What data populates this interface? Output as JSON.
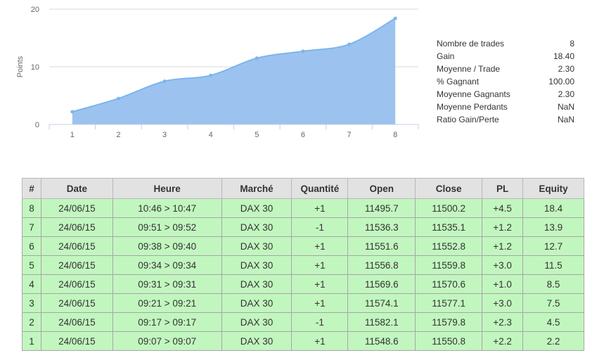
{
  "chart_data": {
    "type": "area",
    "x": [
      1,
      2,
      3,
      4,
      5,
      6,
      7,
      8
    ],
    "values": [
      2.2,
      4.5,
      7.5,
      8.5,
      11.5,
      12.7,
      13.9,
      18.4
    ],
    "xlabel": "",
    "ylabel": "Points",
    "ylim": [
      0,
      20
    ],
    "yticks": [
      0,
      10,
      20
    ],
    "grid": true,
    "fill_color": "#9cc3ef",
    "line_color": "#7cb5ec"
  },
  "stats": [
    {
      "label": "Nombre de trades",
      "value": "8"
    },
    {
      "label": "Gain",
      "value": "18.40"
    },
    {
      "label": "Moyenne / Trade",
      "value": "2.30"
    },
    {
      "label": "% Gagnant",
      "value": "100.00"
    },
    {
      "label": "Moyenne Gagnants",
      "value": "2.30"
    },
    {
      "label": "Moyenne Perdants",
      "value": "NaN"
    },
    {
      "label": "Ratio Gain/Perte",
      "value": "NaN"
    }
  ],
  "table": {
    "columns": [
      "#",
      "Date",
      "Heure",
      "Marché",
      "Quantité",
      "Open",
      "Close",
      "PL",
      "Equity"
    ],
    "rows": [
      [
        "8",
        "24/06/15",
        "10:46 > 10:47",
        "DAX 30",
        "+1",
        "11495.7",
        "11500.2",
        "+4.5",
        "18.4"
      ],
      [
        "7",
        "24/06/15",
        "09:51 > 09:52",
        "DAX 30",
        "-1",
        "11536.3",
        "11535.1",
        "+1.2",
        "13.9"
      ],
      [
        "6",
        "24/06/15",
        "09:38 > 09:40",
        "DAX 30",
        "+1",
        "11551.6",
        "11552.8",
        "+1.2",
        "12.7"
      ],
      [
        "5",
        "24/06/15",
        "09:34 > 09:34",
        "DAX 30",
        "+1",
        "11556.8",
        "11559.8",
        "+3.0",
        "11.5"
      ],
      [
        "4",
        "24/06/15",
        "09:31 > 09:31",
        "DAX 30",
        "+1",
        "11569.6",
        "11570.6",
        "+1.0",
        "8.5"
      ],
      [
        "3",
        "24/06/15",
        "09:21 > 09:21",
        "DAX 30",
        "+1",
        "11574.1",
        "11577.1",
        "+3.0",
        "7.5"
      ],
      [
        "2",
        "24/06/15",
        "09:17 > 09:17",
        "DAX 30",
        "-1",
        "11582.1",
        "11579.8",
        "+2.3",
        "4.5"
      ],
      [
        "1",
        "24/06/15",
        "09:07 > 09:07",
        "DAX 30",
        "+1",
        "11548.6",
        "11550.8",
        "+2.2",
        "2.2"
      ]
    ]
  },
  "colors": {
    "row_bg": "#c2f6bf",
    "header_bg": "#e2e2e2"
  }
}
